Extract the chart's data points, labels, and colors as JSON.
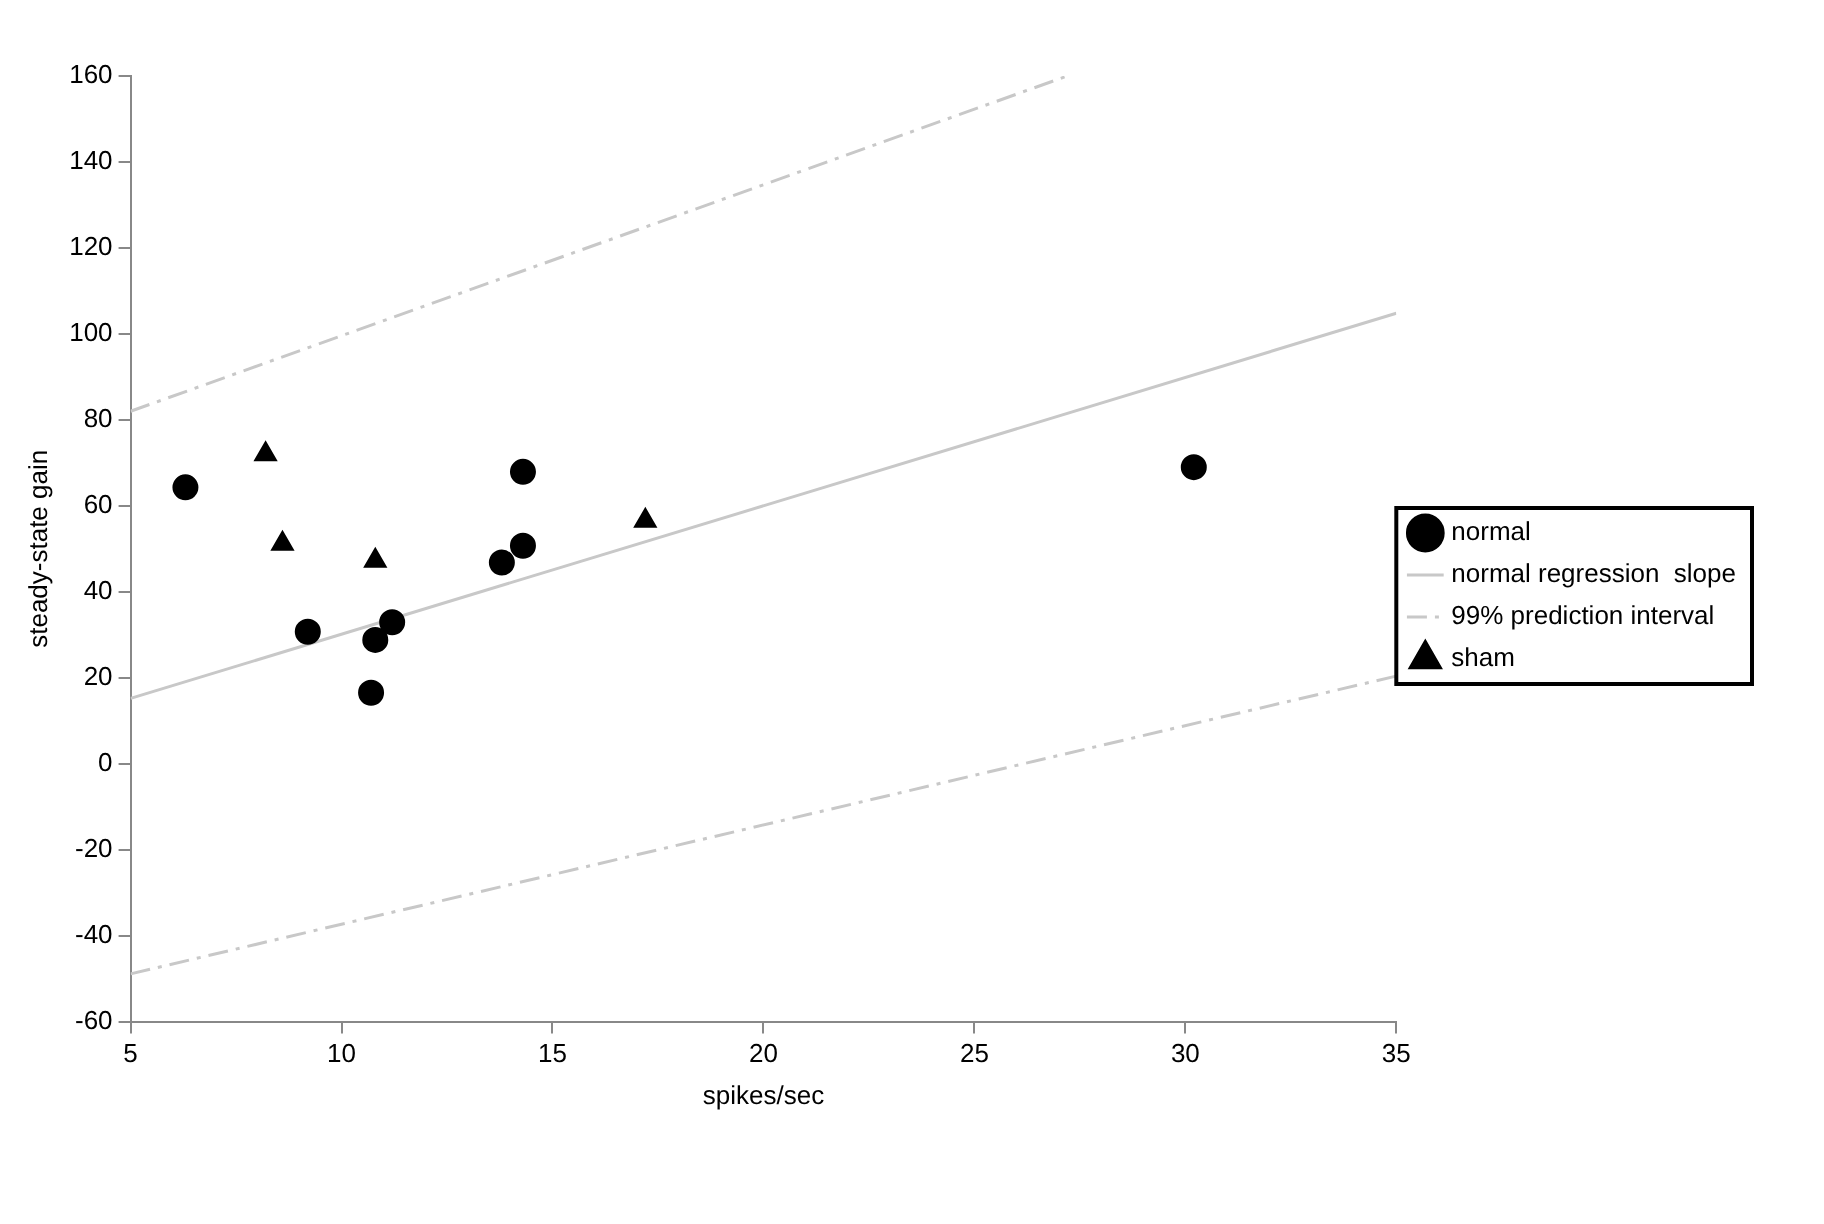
{
  "chart_data": {
    "type": "scatter",
    "xlabel": "spikes/sec",
    "ylabel": "steady-state gain",
    "xlim": [
      5,
      35
    ],
    "xticks": [
      5,
      10,
      15,
      20,
      25,
      30,
      35
    ],
    "ylim": [
      -60,
      160
    ],
    "yticks": [
      -60,
      -40,
      -20,
      0,
      20,
      40,
      60,
      80,
      100,
      120,
      140,
      160
    ],
    "grid": false,
    "legend": "right",
    "series": [
      {
        "name": "normal",
        "marker": "circle",
        "color": "#000000",
        "x": [
          6.3,
          9.2,
          10.7,
          10.8,
          11.2,
          13.8,
          14.3,
          14.3,
          30.2
        ],
        "values": [
          64.3,
          30.7,
          16.5,
          28.8,
          32.9,
          46.8,
          50.7,
          67.9,
          69.0
        ]
      },
      {
        "name": "normal regression  slope",
        "type": "line",
        "marker": "none",
        "line_style": "solid",
        "color": "#c8c8c8",
        "x": [
          5,
          35
        ],
        "values": [
          15.2,
          104.8
        ]
      },
      {
        "name": "99% prediction interval",
        "type": "line",
        "marker": "none",
        "line_style": "dashed",
        "color": "#c8c8c8",
        "x": [
          5,
          27.2
        ],
        "values": [
          82,
          160
        ]
      },
      {
        "type": "line",
        "marker": "none",
        "line_style": "dashed",
        "color": "#c8c8c8",
        "x": [
          5,
          35
        ],
        "values": [
          -48.9,
          20.4
        ]
      },
      {
        "name": "sham",
        "marker": "triangle",
        "color": "#000000",
        "x": [
          8.2,
          8.6,
          10.8,
          17.2
        ],
        "values": [
          72,
          51.2,
          47.2,
          56.5
        ]
      }
    ]
  }
}
